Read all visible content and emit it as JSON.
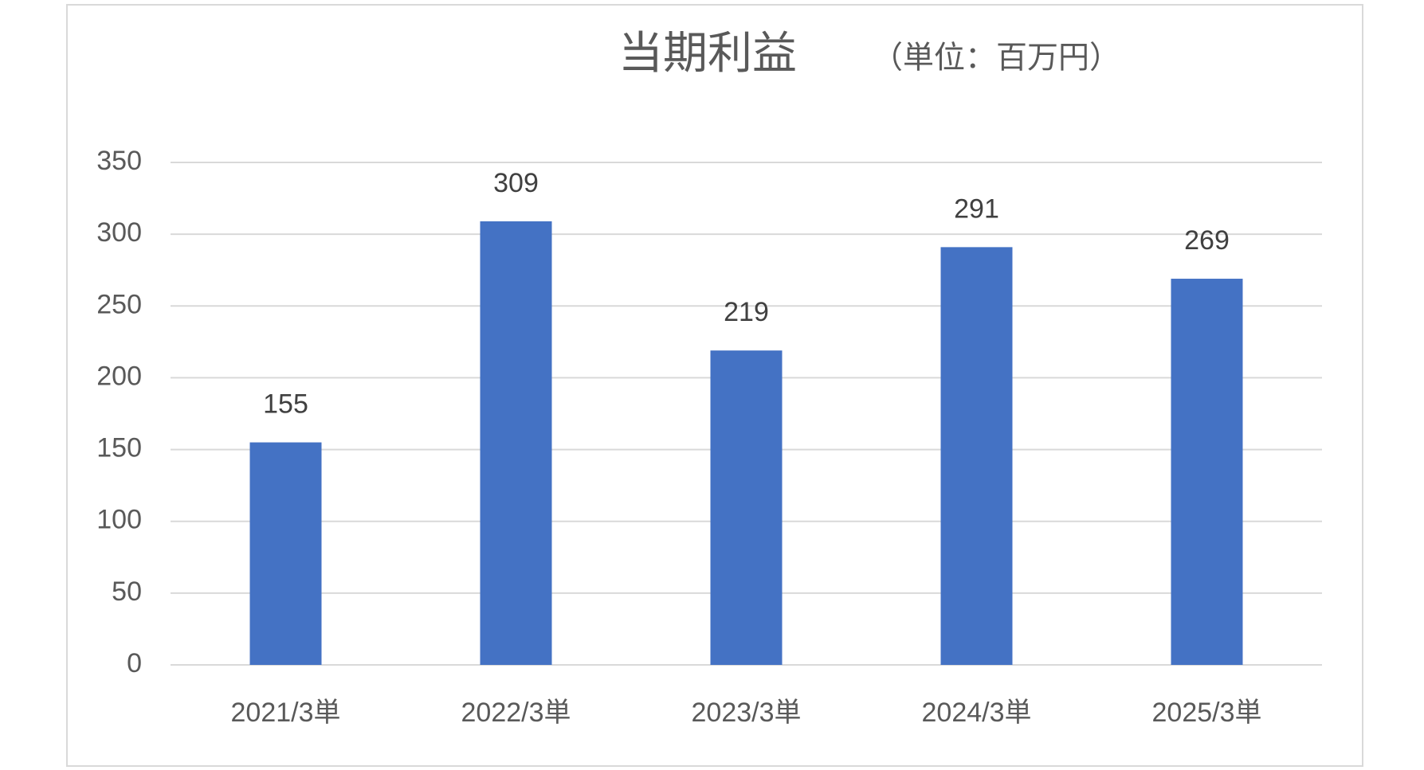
{
  "chart_data": {
    "type": "bar",
    "title": "当期利益",
    "subtitle": "（単位：百万円）",
    "categories": [
      "2021/3単",
      "2022/3単",
      "2023/3単",
      "2024/3単",
      "2025/3単"
    ],
    "values": [
      155,
      309,
      219,
      291,
      269
    ],
    "color": "#4472c4",
    "ylim": [
      0,
      350
    ],
    "yticks": [
      0,
      50,
      100,
      150,
      200,
      250,
      300,
      350
    ],
    "grid": true
  }
}
